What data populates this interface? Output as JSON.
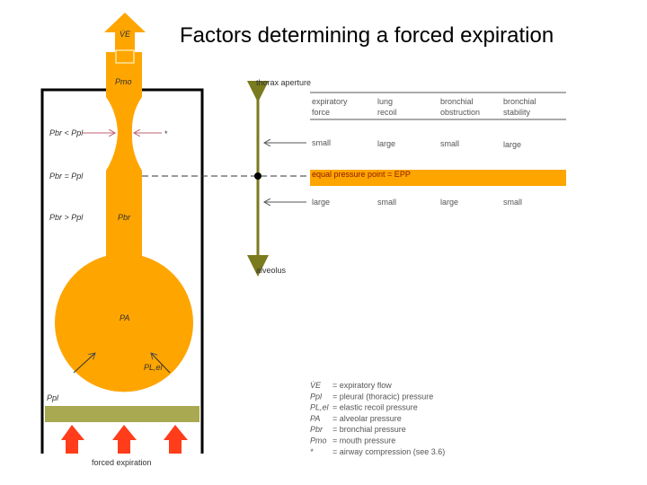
{
  "title": "Factors determining a forced expiration",
  "colors": {
    "airway": "#ffa500",
    "pleura": "#a9a952",
    "force_arrows": "#ff3d1a",
    "axis": "#7a7a1e",
    "epp_text": "#8a1a00",
    "compression_arrows": "#c06070"
  },
  "airway_labels": {
    "flow": "V̇E",
    "mouth": "Pmo",
    "bronchial": "Pbr",
    "alveolar": "PA",
    "elastic": "PL,el",
    "pleural": "Ppl",
    "compression": "*",
    "pbr_lt": "Pbr < Ppl",
    "pbr_eq": "Pbr = Ppl",
    "pbr_gt": "Pbr > Ppl",
    "forced": "forced expiration"
  },
  "axis": {
    "top": "thorax aperture",
    "bottom": "alveolus"
  },
  "table": {
    "headers": [
      [
        "expiratory",
        "force"
      ],
      [
        "lung",
        "recoil"
      ],
      [
        "bronchial",
        "obstruction"
      ],
      [
        "bronchial",
        "stability"
      ]
    ],
    "row_above": [
      "small",
      "large",
      "small",
      "large"
    ],
    "epp": "equal pressure point = EPP",
    "row_below": [
      "large",
      "small",
      "large",
      "small"
    ]
  },
  "legend": [
    {
      "sym": "V̇E",
      "desc": "= expiratory flow"
    },
    {
      "sym": "Ppl",
      "desc": "= pleural (thoracic) pressure"
    },
    {
      "sym": "PL,el",
      "desc": "= elastic recoil pressure"
    },
    {
      "sym": "PA",
      "desc": "= alveolar pressure"
    },
    {
      "sym": "Pbr",
      "desc": "= bronchial pressure"
    },
    {
      "sym": "Pmo",
      "desc": "= mouth pressure"
    },
    {
      "sym": "*",
      "desc": "= airway compression (see 3.6)"
    }
  ]
}
